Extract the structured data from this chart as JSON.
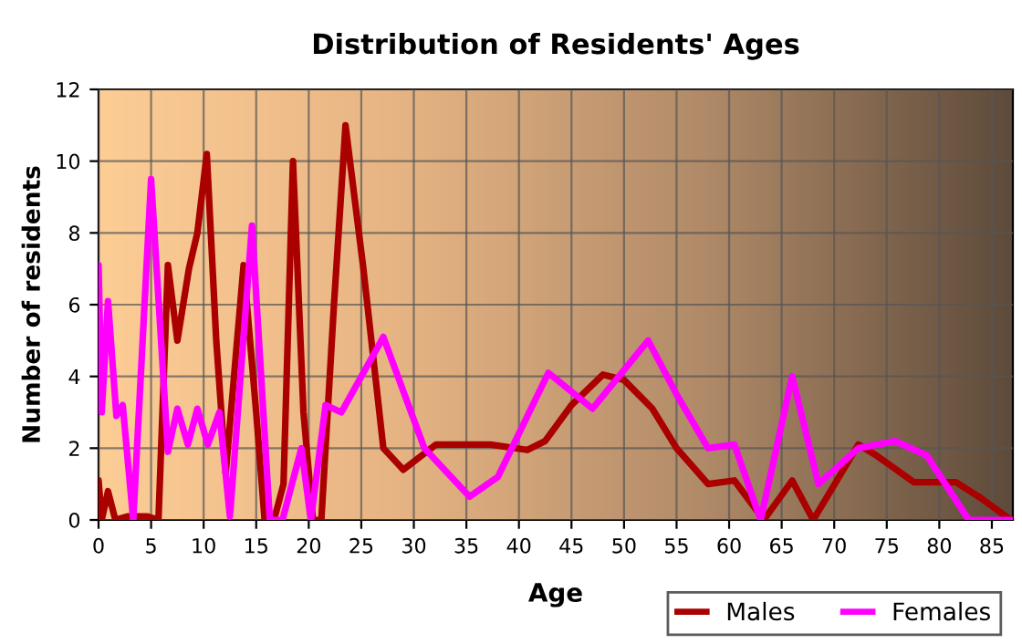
{
  "chart_data": {
    "type": "line",
    "title": "Distribution of Residents' Ages",
    "xlabel": "Age",
    "ylabel": "Number of residents",
    "xlim": [
      0,
      87
    ],
    "xticks": [
      0,
      5,
      10,
      15,
      20,
      25,
      30,
      35,
      40,
      45,
      50,
      55,
      60,
      65,
      70,
      75,
      80,
      85
    ],
    "ylim": [
      0,
      12
    ],
    "yticks": [
      0,
      2,
      4,
      6,
      8,
      10,
      12
    ],
    "grid": true,
    "legend": "bottom right",
    "line_style": "solid",
    "marker": "none",
    "series": [
      {
        "name": "Males",
        "color": "#aa0000",
        "x": [
          0,
          0.3,
          0.9,
          1.6,
          2.8,
          4.6,
          5.7,
          6.6,
          7.5,
          8.6,
          9.4,
          10.3,
          11.2,
          12.1,
          13.8,
          15,
          15.8,
          16.7,
          17.6,
          18.5,
          19.5,
          20.4,
          21.2,
          22.4,
          23.5,
          25.2,
          27.1,
          29,
          32.1,
          37.3,
          40.8,
          42.5,
          45,
          48,
          50,
          52.7,
          55,
          58,
          60.5,
          63.3,
          66,
          68,
          72.3,
          74,
          77.6,
          81.6,
          84,
          86.8
        ],
        "values": [
          1.1,
          0,
          0.8,
          0,
          0.1,
          0.1,
          0,
          7.1,
          5,
          7,
          8,
          10.2,
          5,
          1.3,
          7.1,
          3,
          0,
          0,
          1,
          10,
          3,
          0,
          0,
          6,
          11,
          7,
          2,
          1.4,
          2.1,
          2.1,
          1.95,
          2.2,
          3.2,
          4.05,
          3.9,
          3.1,
          2,
          1,
          1.1,
          0,
          1.1,
          0,
          2.1,
          1.8,
          1.05,
          1.05,
          0.6,
          0
        ]
      },
      {
        "name": "Females",
        "color": "#ff00ff",
        "x": [
          0,
          0.3,
          0.9,
          1.7,
          2.3,
          3.3,
          5,
          6.6,
          7.5,
          8.5,
          9.4,
          10.4,
          11.5,
          12.5,
          14.6,
          16.3,
          17.5,
          19.3,
          20.2,
          21.6,
          23.1,
          27.1,
          31,
          35.3,
          38,
          42.8,
          47,
          52.3,
          55,
          58,
          60.5,
          63,
          66,
          68.5,
          72.3,
          75.8,
          78.8,
          82.8,
          87
        ],
        "values": [
          7.1,
          3,
          6.1,
          2.9,
          3.2,
          0,
          9.5,
          1.9,
          3.1,
          2.1,
          3.1,
          2.1,
          3,
          0.1,
          8.2,
          0,
          0,
          2,
          0,
          3.2,
          3,
          5.1,
          2,
          0.65,
          1.2,
          4.1,
          3.1,
          5,
          3.5,
          2,
          2.1,
          0,
          4,
          1,
          2,
          2.2,
          1.8,
          0,
          0
        ]
      }
    ]
  }
}
